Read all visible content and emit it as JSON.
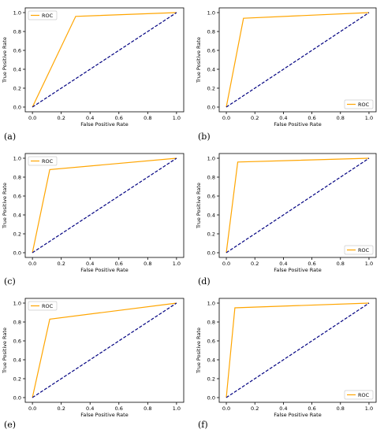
{
  "figure": {
    "captions": [
      "(a)",
      "(b)",
      "(c)",
      "(d)",
      "(e)",
      "(f)"
    ]
  },
  "chart_data": [
    {
      "type": "line",
      "xlabel": "False Positive Rate",
      "ylabel": "True Positive Rate",
      "xlim": [
        -0.05,
        1.05
      ],
      "ylim": [
        -0.05,
        1.05
      ],
      "xticks": [
        "0.0",
        "0.2",
        "0.4",
        "0.6",
        "0.8",
        "1.0"
      ],
      "yticks": [
        "0.0",
        "0.2",
        "0.4",
        "0.6",
        "0.8",
        "1.0"
      ],
      "grid": false,
      "legend_position": "upper-left",
      "series": [
        {
          "name": "ROC",
          "color": "#ffa500",
          "style": "solid",
          "x": [
            0,
            0.3,
            1
          ],
          "y": [
            0,
            0.96,
            1
          ]
        },
        {
          "color": "#000080",
          "style": "dashed",
          "x": [
            0,
            1
          ],
          "y": [
            0,
            1
          ]
        }
      ]
    },
    {
      "type": "line",
      "xlabel": "False Positive Rate",
      "ylabel": "True Positive Rate",
      "xlim": [
        -0.05,
        1.05
      ],
      "ylim": [
        -0.05,
        1.05
      ],
      "xticks": [
        "0.0",
        "0.2",
        "0.4",
        "0.6",
        "0.8",
        "1.0"
      ],
      "yticks": [
        "0.0",
        "0.2",
        "0.4",
        "0.6",
        "0.8",
        "1.0"
      ],
      "grid": false,
      "legend_position": "lower-right",
      "series": [
        {
          "name": "ROC",
          "color": "#ffa500",
          "style": "solid",
          "x": [
            0,
            0.12,
            1
          ],
          "y": [
            0,
            0.94,
            1
          ]
        },
        {
          "color": "#000080",
          "style": "dashed",
          "x": [
            0,
            1
          ],
          "y": [
            0,
            1
          ]
        }
      ]
    },
    {
      "type": "line",
      "xlabel": "False Positive Rate",
      "ylabel": "True Positive Rate",
      "xlim": [
        -0.05,
        1.05
      ],
      "ylim": [
        -0.05,
        1.05
      ],
      "xticks": [
        "0.0",
        "0.2",
        "0.4",
        "0.6",
        "0.8",
        "1.0"
      ],
      "yticks": [
        "0.0",
        "0.2",
        "0.4",
        "0.6",
        "0.8",
        "1.0"
      ],
      "grid": false,
      "legend_position": "upper-left",
      "series": [
        {
          "name": "ROC",
          "color": "#ffa500",
          "style": "solid",
          "x": [
            0,
            0.12,
            1
          ],
          "y": [
            0,
            0.88,
            1
          ]
        },
        {
          "color": "#000080",
          "style": "dashed",
          "x": [
            0,
            1
          ],
          "y": [
            0,
            1
          ]
        }
      ]
    },
    {
      "type": "line",
      "xlabel": "False Positive Rate",
      "ylabel": "True Positive Rate",
      "xlim": [
        -0.05,
        1.05
      ],
      "ylim": [
        -0.05,
        1.05
      ],
      "xticks": [
        "0.0",
        "0.2",
        "0.4",
        "0.6",
        "0.8",
        "1.0"
      ],
      "yticks": [
        "0.0",
        "0.2",
        "0.4",
        "0.6",
        "0.8",
        "1.0"
      ],
      "grid": false,
      "legend_position": "lower-right",
      "series": [
        {
          "name": "ROC",
          "color": "#ffa500",
          "style": "solid",
          "x": [
            0,
            0.08,
            1
          ],
          "y": [
            0,
            0.96,
            1
          ]
        },
        {
          "color": "#000080",
          "style": "dashed",
          "x": [
            0,
            1
          ],
          "y": [
            0,
            1
          ]
        }
      ]
    },
    {
      "type": "line",
      "xlabel": "False Positive Rate",
      "ylabel": "True Positive Rate",
      "xlim": [
        -0.05,
        1.05
      ],
      "ylim": [
        -0.05,
        1.05
      ],
      "xticks": [
        "0.0",
        "0.2",
        "0.4",
        "0.6",
        "0.8",
        "1.0"
      ],
      "yticks": [
        "0.0",
        "0.2",
        "0.4",
        "0.6",
        "0.8",
        "1.0"
      ],
      "grid": false,
      "legend_position": "upper-left",
      "series": [
        {
          "name": "ROC",
          "color": "#ffa500",
          "style": "solid",
          "x": [
            0,
            0.12,
            1
          ],
          "y": [
            0,
            0.83,
            1
          ]
        },
        {
          "color": "#000080",
          "style": "dashed",
          "x": [
            0,
            1
          ],
          "y": [
            0,
            1
          ]
        }
      ]
    },
    {
      "type": "line",
      "xlabel": "False Positive Rate",
      "ylabel": "True Positive Rate",
      "xlim": [
        -0.05,
        1.05
      ],
      "ylim": [
        -0.05,
        1.05
      ],
      "xticks": [
        "0.0",
        "0.2",
        "0.4",
        "0.6",
        "0.8",
        "1.0"
      ],
      "yticks": [
        "0.0",
        "0.2",
        "0.4",
        "0.6",
        "0.8",
        "1.0"
      ],
      "grid": false,
      "legend_position": "lower-right",
      "series": [
        {
          "name": "ROC",
          "color": "#ffa500",
          "style": "solid",
          "x": [
            0,
            0.06,
            1
          ],
          "y": [
            0,
            0.95,
            1
          ]
        },
        {
          "color": "#000080",
          "style": "dashed",
          "x": [
            0,
            1
          ],
          "y": [
            0,
            1
          ]
        }
      ]
    }
  ]
}
